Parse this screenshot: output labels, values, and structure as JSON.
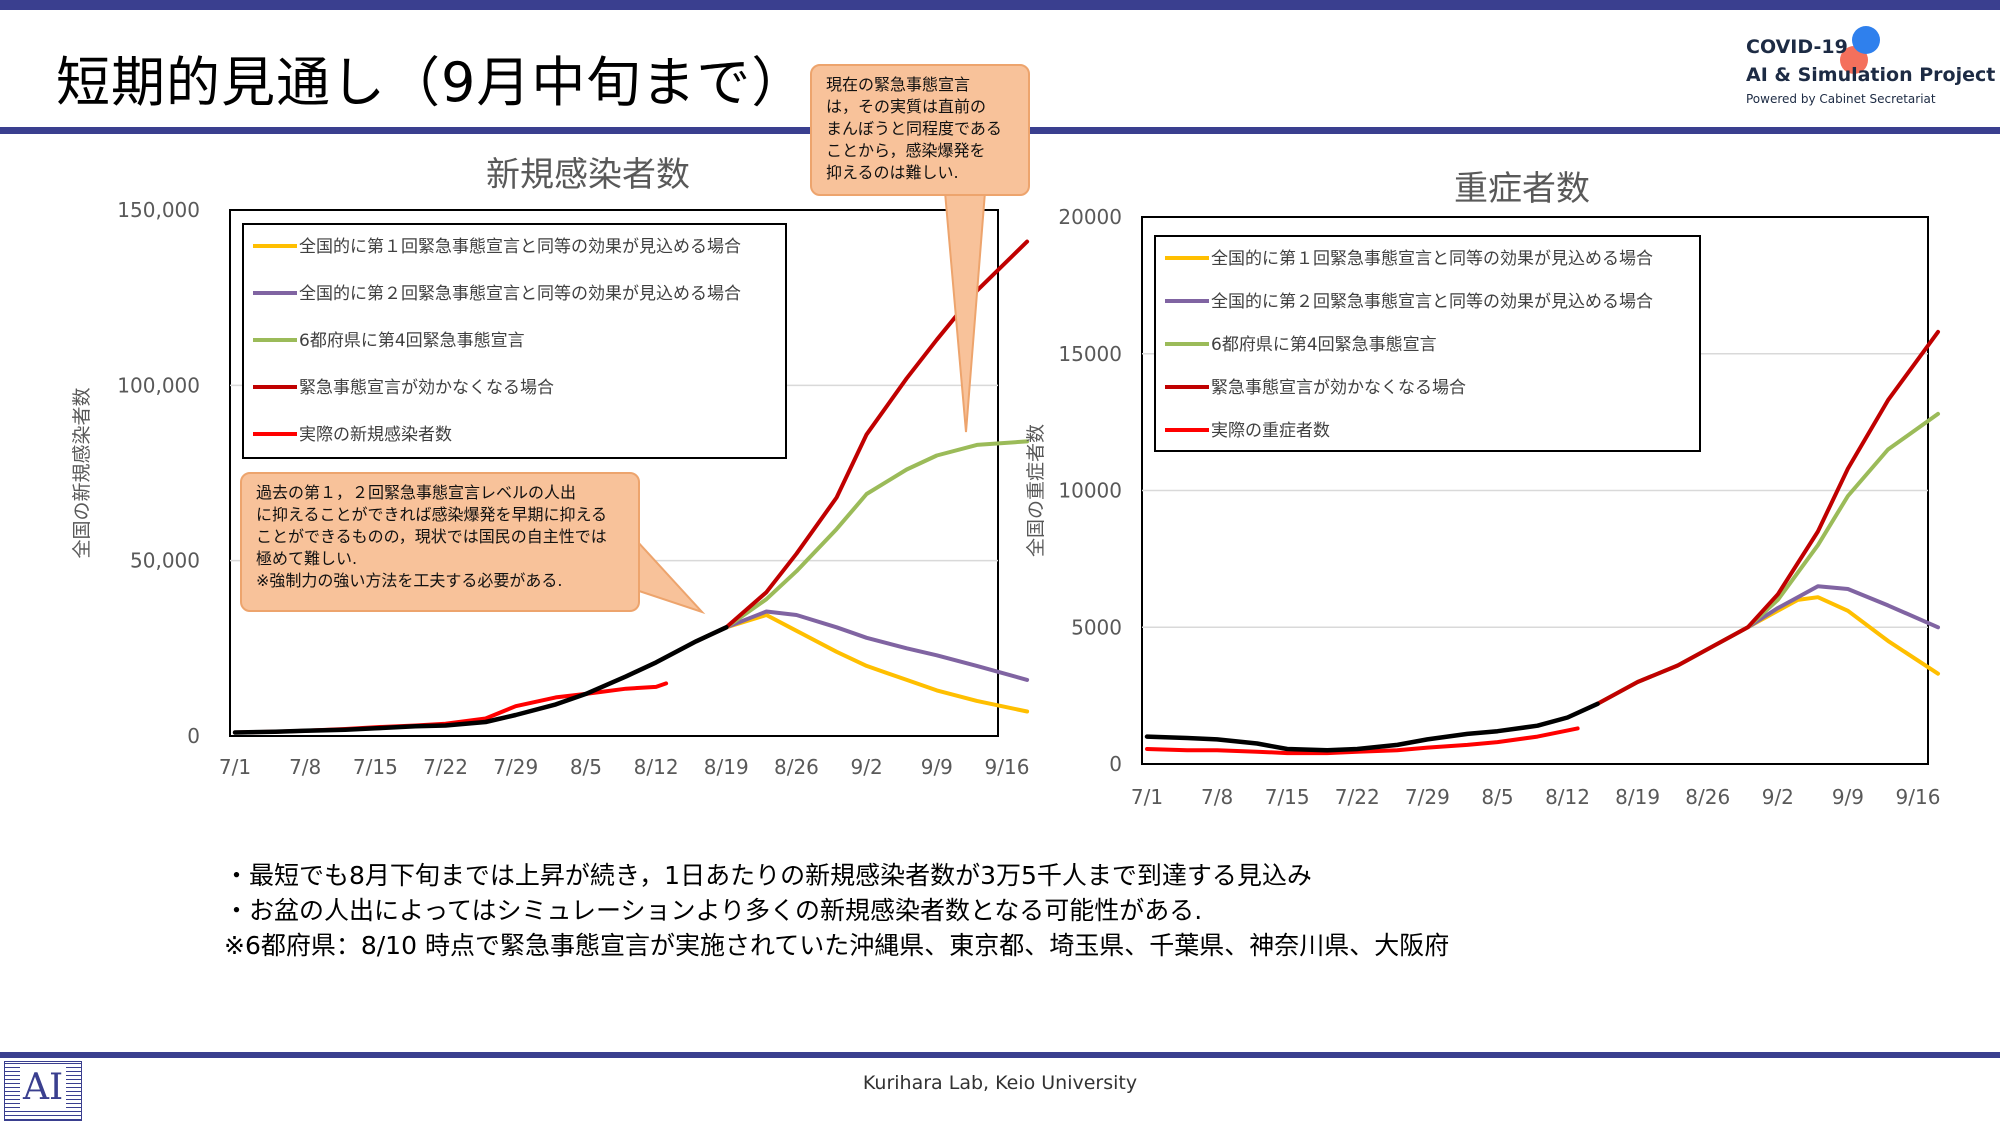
{
  "header": {
    "title": "短期的見通し（9月中旬まで）",
    "logo_line1": "COVID-19",
    "logo_line2": "AI & Simulation Project",
    "logo_line3": "Powered by Cabinet Secretariat"
  },
  "callouts": {
    "top": "現在の緊急事態宣言\nは，その実質は直前の\nまんぼうと同程度である\nことから，感染爆発を\n抑えるのは難しい.",
    "left": "過去の第１，２回緊急事態宣言レベルの人出\nに抑えることができれば感染爆発を早期に抑える\nことができるものの，現状では国民の自主性では\n極めて難しい.\n※強制力の強い方法を工夫する必要がある."
  },
  "bullets": [
    "・最短でも8月下旬までは上昇が続き，1日あたりの新規感染者数が3万5千人まで到達する見込み",
    "・お盆の人出によってはシミュレーションより多くの新規感染者数となる可能性がある.",
    "※6都府県：8/10 時点で緊急事態宣言が実施されていた沖縄県、東京都、埼玉県、千葉県、神奈川県、大阪府"
  ],
  "footer": {
    "text": "Kurihara Lab, Keio University",
    "ai_logo_text": "AI"
  },
  "colors": {
    "orange": "#ffbf00",
    "purple": "#8064a2",
    "green": "#9bbb59",
    "darkred": "#c00000",
    "red": "#ff0000",
    "black": "#000000",
    "navy": "#3a3f8f",
    "callout_fill": "#f8c29a"
  },
  "chart_data": [
    {
      "type": "line",
      "title": "新規感染者数",
      "ylabel": "全国の新規感染者数",
      "xlabel": "",
      "x_ticks": [
        "7/1",
        "7/8",
        "7/15",
        "7/22",
        "7/29",
        "8/5",
        "8/12",
        "8/19",
        "8/26",
        "9/2",
        "9/9",
        "9/16"
      ],
      "y_ticks": [
        "0",
        "50,000",
        "100,000",
        "150,000"
      ],
      "ylim": [
        0,
        150000
      ],
      "grid": true,
      "legend_position": "top-left",
      "legend": [
        "全国的に第１回緊急事態宣言と同等の効果が見込める場合",
        "全国的に第２回緊急事態宣言と同等の効果が見込める場合",
        "6都府県に第4回緊急事態宣言",
        "緊急事態宣言が効かなくなる場合",
        "実際の新規感染者数"
      ],
      "series": [
        {
          "name": "全国的に第１回緊急事態宣言と同等の効果が見込める場合",
          "color": "orange",
          "x": [
            "8/16",
            "8/19",
            "8/23",
            "8/26",
            "8/30",
            "9/2",
            "9/6",
            "9/9",
            "9/13",
            "9/18"
          ],
          "values": [
            27000,
            31000,
            34500,
            30000,
            24000,
            20000,
            16000,
            13000,
            10000,
            7000
          ]
        },
        {
          "name": "全国的に第２回緊急事態宣言と同等の効果が見込める場合",
          "color": "purple",
          "x": [
            "8/16",
            "8/19",
            "8/23",
            "8/26",
            "8/30",
            "9/2",
            "9/6",
            "9/9",
            "9/13",
            "9/18"
          ],
          "values": [
            27000,
            31000,
            35500,
            34500,
            31000,
            28000,
            25000,
            23000,
            20000,
            16000
          ]
        },
        {
          "name": "6都府県に第4回緊急事態宣言",
          "color": "green",
          "x": [
            "8/16",
            "8/19",
            "8/23",
            "8/26",
            "8/30",
            "9/2",
            "9/6",
            "9/9",
            "9/13",
            "9/18"
          ],
          "values": [
            27000,
            31000,
            39000,
            47000,
            59000,
            69000,
            76000,
            80000,
            83000,
            84000
          ]
        },
        {
          "name": "緊急事態宣言が効かなくなる場合",
          "color": "darkred",
          "x": [
            "8/16",
            "8/19",
            "8/23",
            "8/26",
            "8/30",
            "9/2",
            "9/6",
            "9/9",
            "9/13",
            "9/18"
          ],
          "values": [
            27000,
            31000,
            41000,
            52000,
            68000,
            86000,
            102000,
            113000,
            127000,
            141000
          ]
        },
        {
          "name": "実際の新規感染者数",
          "color": "red",
          "x": [
            "7/1",
            "7/5",
            "7/8",
            "7/12",
            "7/15",
            "7/19",
            "7/22",
            "7/26",
            "7/29",
            "8/2",
            "8/5",
            "8/9",
            "8/12",
            "8/13"
          ],
          "values": [
            1000,
            1200,
            1500,
            2000,
            2500,
            3000,
            3500,
            5000,
            8500,
            11000,
            12000,
            13500,
            14000,
            15000
          ]
        },
        {
          "name": "",
          "color": "black",
          "x": [
            "7/1",
            "7/5",
            "7/8",
            "7/12",
            "7/15",
            "7/19",
            "7/22",
            "7/26",
            "7/29",
            "8/2",
            "8/5",
            "8/9",
            "8/12",
            "8/16",
            "8/19"
          ],
          "values": [
            1000,
            1200,
            1500,
            1800,
            2200,
            2800,
            3000,
            4000,
            6000,
            9000,
            12000,
            17000,
            21000,
            27000,
            31000
          ]
        }
      ]
    },
    {
      "type": "line",
      "title": "重症者数",
      "ylabel": "全国の重症者数",
      "xlabel": "",
      "x_ticks": [
        "7/1",
        "7/8",
        "7/15",
        "7/22",
        "7/29",
        "8/5",
        "8/12",
        "8/19",
        "8/26",
        "9/2",
        "9/9",
        "9/16"
      ],
      "y_ticks": [
        "0",
        "5000",
        "10000",
        "15000",
        "20000"
      ],
      "ylim": [
        0,
        20000
      ],
      "grid": true,
      "legend_position": "top-left",
      "legend": [
        "全国的に第１回緊急事態宣言と同等の効果が見込める場合",
        "全国的に第２回緊急事態宣言と同等の効果が見込める場合",
        "6都府県に第4回緊急事態宣言",
        "緊急事態宣言が効かなくなる場合",
        "実際の重症者数"
      ],
      "series": [
        {
          "name": "全国的に第１回緊急事態宣言と同等の効果が見込める場合",
          "color": "orange",
          "x": [
            "8/15",
            "8/19",
            "8/23",
            "8/26",
            "8/30",
            "9/2",
            "9/4",
            "9/6",
            "9/9",
            "9/13",
            "9/18"
          ],
          "values": [
            2200,
            3000,
            3600,
            4200,
            5000,
            5600,
            6000,
            6100,
            5600,
            4500,
            3300
          ]
        },
        {
          "name": "全国的に第２回緊急事態宣言と同等の効果が見込める場合",
          "color": "purple",
          "x": [
            "8/15",
            "8/19",
            "8/23",
            "8/26",
            "8/30",
            "9/2",
            "9/4",
            "9/6",
            "9/9",
            "9/13",
            "9/18"
          ],
          "values": [
            2200,
            3000,
            3600,
            4200,
            5000,
            5700,
            6100,
            6500,
            6400,
            5800,
            5000
          ]
        },
        {
          "name": "6都府県に第4回緊急事態宣言",
          "color": "green",
          "x": [
            "8/15",
            "8/19",
            "8/23",
            "8/26",
            "8/30",
            "9/2",
            "9/6",
            "9/9",
            "9/13",
            "9/18"
          ],
          "values": [
            2200,
            3000,
            3600,
            4200,
            5000,
            6000,
            8000,
            9800,
            11500,
            12800
          ]
        },
        {
          "name": "緊急事態宣言が効かなくなる場合",
          "color": "darkred",
          "x": [
            "8/15",
            "8/19",
            "8/23",
            "8/26",
            "8/30",
            "9/2",
            "9/6",
            "9/9",
            "9/13",
            "9/18"
          ],
          "values": [
            2200,
            3000,
            3600,
            4200,
            5000,
            6200,
            8500,
            10800,
            13300,
            15800
          ]
        },
        {
          "name": "実際の重症者数",
          "color": "red",
          "x": [
            "7/1",
            "7/5",
            "7/8",
            "7/12",
            "7/15",
            "7/19",
            "7/22",
            "7/26",
            "7/29",
            "8/2",
            "8/5",
            "8/9",
            "8/13"
          ],
          "values": [
            550,
            500,
            500,
            450,
            400,
            400,
            450,
            500,
            600,
            700,
            800,
            1000,
            1300
          ]
        },
        {
          "name": "",
          "color": "black",
          "x": [
            "7/1",
            "7/5",
            "7/8",
            "7/12",
            "7/15",
            "7/19",
            "7/22",
            "7/26",
            "7/29",
            "8/2",
            "8/5",
            "8/9",
            "8/12",
            "8/15"
          ],
          "values": [
            1000,
            950,
            900,
            750,
            550,
            500,
            550,
            700,
            900,
            1100,
            1200,
            1400,
            1700,
            2200
          ]
        }
      ]
    }
  ]
}
